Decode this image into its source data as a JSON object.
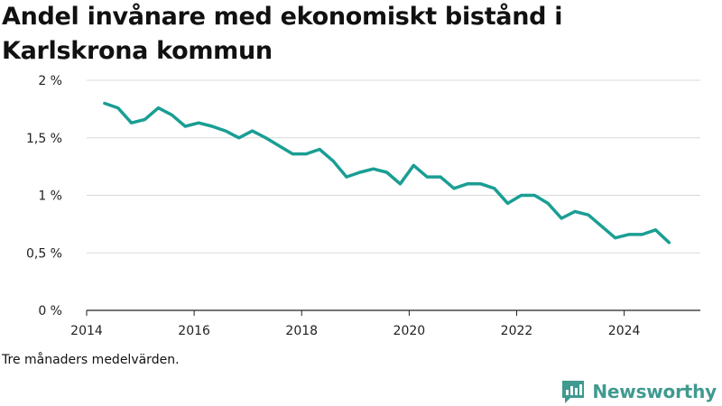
{
  "title": "Andel invånare med ekonomiskt bistånd i Karlskrona kommun",
  "footnote": "Tre månaders medelvärden.",
  "brand": {
    "name": "Newsworthy",
    "icon": "newsworthy-logo-icon",
    "color": "#3f9a8f"
  },
  "chart_data": {
    "type": "line",
    "title": "Andel invånare med ekonomiskt bistånd i Karlskrona kommun",
    "xlabel": "",
    "ylabel": "",
    "x_ticks": [
      "2014",
      "2016",
      "2018",
      "2020",
      "2022",
      "2024"
    ],
    "y_ticks": [
      "0 %",
      "0,5 %",
      "1 %",
      "1,5 %",
      "2 %"
    ],
    "xlim": [
      "2014-01",
      "2025-06"
    ],
    "ylim": [
      0,
      2
    ],
    "grid": "horizontal",
    "line_color": "#1a9e94",
    "series": [
      {
        "x": [
          "2014-05",
          "2014-08",
          "2014-11",
          "2015-02",
          "2015-05",
          "2015-08",
          "2015-11",
          "2016-02",
          "2016-05",
          "2016-08",
          "2016-11",
          "2017-02",
          "2017-05",
          "2017-08",
          "2017-11",
          "2018-02",
          "2018-05",
          "2018-08",
          "2018-11",
          "2019-02",
          "2019-05",
          "2019-08",
          "2019-11",
          "2020-02",
          "2020-05",
          "2020-08",
          "2020-11",
          "2021-02",
          "2021-05",
          "2021-08",
          "2021-11",
          "2022-02",
          "2022-05",
          "2022-08",
          "2022-11",
          "2023-02",
          "2023-05",
          "2023-08",
          "2023-11",
          "2024-02",
          "2024-05",
          "2024-08",
          "2024-11"
        ],
        "values": [
          1.8,
          1.76,
          1.63,
          1.66,
          1.76,
          1.7,
          1.6,
          1.63,
          1.6,
          1.56,
          1.5,
          1.56,
          1.5,
          1.43,
          1.36,
          1.36,
          1.4,
          1.3,
          1.16,
          1.2,
          1.23,
          1.2,
          1.1,
          1.26,
          1.16,
          1.16,
          1.06,
          1.1,
          1.1,
          1.06,
          0.93,
          1.0,
          1.0,
          0.93,
          0.8,
          0.86,
          0.83,
          0.73,
          0.63,
          0.66,
          0.66,
          0.7,
          0.59
        ]
      }
    ]
  }
}
